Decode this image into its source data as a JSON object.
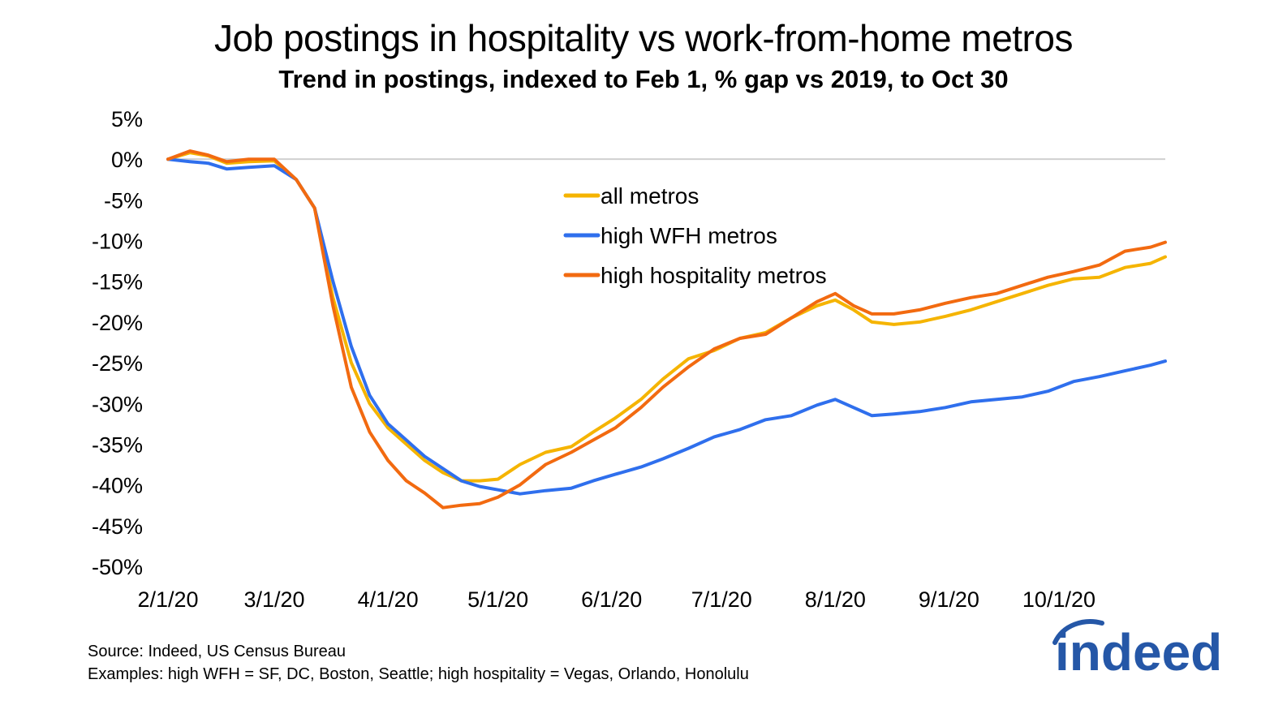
{
  "header": {
    "title": "Job postings in hospitality vs work-from-home metros",
    "subtitle": "Trend in postings, indexed to Feb 1, % gap vs 2019, to Oct 30"
  },
  "footer": {
    "source": "Source: Indeed, US Census Bureau",
    "examples": "Examples: high WFH = SF, DC, Boston, Seattle; high hospitality = Vegas, Orlando, Honolulu"
  },
  "logo": {
    "text": "indeed",
    "color": "#2557a7"
  },
  "chart_data": {
    "type": "line",
    "title": "Job postings in hospitality vs work-from-home metros",
    "subtitle": "Trend in postings, indexed to Feb 1, % gap vs 2019, to Oct 30",
    "xlabel": "",
    "ylabel": "",
    "ylim": [
      -50,
      5
    ],
    "yticks": [
      5,
      0,
      -5,
      -10,
      -15,
      -20,
      -25,
      -30,
      -35,
      -40,
      -45,
      -50
    ],
    "ytick_labels": [
      "5%",
      "0%",
      "-5%",
      "-10%",
      "-15%",
      "-20%",
      "-25%",
      "-30%",
      "-35%",
      "-40%",
      "-45%",
      "-50%"
    ],
    "x_start": "2020-02-01",
    "x_end": "2020-10-30",
    "xticks": [
      "2020-02-01",
      "2020-03-01",
      "2020-04-01",
      "2020-05-01",
      "2020-06-01",
      "2020-07-01",
      "2020-08-01",
      "2020-09-01",
      "2020-10-01"
    ],
    "xtick_labels": [
      "2/1/20",
      "3/1/20",
      "4/1/20",
      "5/1/20",
      "6/1/20",
      "7/1/20",
      "8/1/20",
      "9/1/20",
      "10/1/20"
    ],
    "zero_line": true,
    "grid": false,
    "legend_position": "center",
    "series": [
      {
        "name": "all metros",
        "color": "#f5b400",
        "x": [
          "2020-02-01",
          "2020-02-07",
          "2020-02-12",
          "2020-02-17",
          "2020-02-23",
          "2020-03-01",
          "2020-03-07",
          "2020-03-12",
          "2020-03-17",
          "2020-03-22",
          "2020-03-27",
          "2020-04-01",
          "2020-04-06",
          "2020-04-11",
          "2020-04-16",
          "2020-04-21",
          "2020-04-26",
          "2020-05-01",
          "2020-05-07",
          "2020-05-14",
          "2020-05-21",
          "2020-05-27",
          "2020-06-02",
          "2020-06-09",
          "2020-06-15",
          "2020-06-22",
          "2020-06-29",
          "2020-07-06",
          "2020-07-13",
          "2020-07-20",
          "2020-07-27",
          "2020-08-01",
          "2020-08-06",
          "2020-08-11",
          "2020-08-17",
          "2020-08-24",
          "2020-08-31",
          "2020-09-07",
          "2020-09-14",
          "2020-09-21",
          "2020-09-28",
          "2020-10-05",
          "2020-10-12",
          "2020-10-19",
          "2020-10-26",
          "2020-10-30"
        ],
        "y": [
          0,
          0.8,
          0.4,
          -0.5,
          -0.3,
          -0.2,
          -2.5,
          -6,
          -17,
          -25,
          -30,
          -33,
          -35,
          -37,
          -38.5,
          -39.5,
          -39.5,
          -39.3,
          -37.5,
          -36,
          -35.3,
          -33.5,
          -31.8,
          -29.5,
          -27,
          -24.5,
          -23.5,
          -22,
          -21.3,
          -19.5,
          -18,
          -17.3,
          -18.5,
          -20,
          -20.3,
          -20,
          -19.3,
          -18.5,
          -17.5,
          -16.5,
          -15.5,
          -14.7,
          -14.5,
          -13.3,
          -12.8,
          -12
        ]
      },
      {
        "name": "high WFH metros",
        "color": "#2f6fed",
        "x": [
          "2020-02-01",
          "2020-02-07",
          "2020-02-12",
          "2020-02-17",
          "2020-02-23",
          "2020-03-01",
          "2020-03-07",
          "2020-03-12",
          "2020-03-17",
          "2020-03-22",
          "2020-03-27",
          "2020-04-01",
          "2020-04-06",
          "2020-04-11",
          "2020-04-16",
          "2020-04-21",
          "2020-04-26",
          "2020-05-01",
          "2020-05-07",
          "2020-05-14",
          "2020-05-21",
          "2020-05-27",
          "2020-06-02",
          "2020-06-09",
          "2020-06-15",
          "2020-06-22",
          "2020-06-29",
          "2020-07-06",
          "2020-07-13",
          "2020-07-20",
          "2020-07-27",
          "2020-08-01",
          "2020-08-06",
          "2020-08-11",
          "2020-08-17",
          "2020-08-24",
          "2020-08-31",
          "2020-09-07",
          "2020-09-14",
          "2020-09-21",
          "2020-09-28",
          "2020-10-05",
          "2020-10-12",
          "2020-10-19",
          "2020-10-26",
          "2020-10-30"
        ],
        "y": [
          0,
          -0.3,
          -0.5,
          -1.2,
          -1,
          -0.8,
          -2.5,
          -6,
          -15,
          -23,
          -29,
          -32.5,
          -34.5,
          -36.5,
          -38,
          -39.5,
          -40.2,
          -40.6,
          -41.1,
          -40.7,
          -40.4,
          -39.5,
          -38.7,
          -37.8,
          -36.8,
          -35.5,
          -34.1,
          -33.2,
          -32,
          -31.5,
          -30.2,
          -29.5,
          -30.5,
          -31.5,
          -31.3,
          -31,
          -30.5,
          -29.8,
          -29.5,
          -29.2,
          -28.5,
          -27.3,
          -26.7,
          -26,
          -25.3,
          -24.8
        ]
      },
      {
        "name": "high hospitality metros",
        "color": "#f26a10",
        "x": [
          "2020-02-01",
          "2020-02-07",
          "2020-02-12",
          "2020-02-17",
          "2020-02-23",
          "2020-03-01",
          "2020-03-07",
          "2020-03-12",
          "2020-03-17",
          "2020-03-22",
          "2020-03-27",
          "2020-04-01",
          "2020-04-06",
          "2020-04-11",
          "2020-04-16",
          "2020-04-21",
          "2020-04-26",
          "2020-05-01",
          "2020-05-07",
          "2020-05-14",
          "2020-05-21",
          "2020-05-27",
          "2020-06-02",
          "2020-06-09",
          "2020-06-15",
          "2020-06-22",
          "2020-06-29",
          "2020-07-06",
          "2020-07-13",
          "2020-07-20",
          "2020-07-27",
          "2020-08-01",
          "2020-08-06",
          "2020-08-11",
          "2020-08-17",
          "2020-08-24",
          "2020-08-31",
          "2020-09-07",
          "2020-09-14",
          "2020-09-21",
          "2020-09-28",
          "2020-10-05",
          "2020-10-12",
          "2020-10-19",
          "2020-10-26",
          "2020-10-30"
        ],
        "y": [
          0,
          1,
          0.5,
          -0.3,
          0,
          0,
          -2.5,
          -6,
          -18,
          -28,
          -33.5,
          -37,
          -39.5,
          -41,
          -42.8,
          -42.5,
          -42.3,
          -41.5,
          -40,
          -37.5,
          -36,
          -34.5,
          -33,
          -30.5,
          -28,
          -25.5,
          -23.3,
          -22,
          -21.5,
          -19.5,
          -17.5,
          -16.5,
          -18,
          -19,
          -19,
          -18.5,
          -17.7,
          -17,
          -16.5,
          -15.5,
          -14.5,
          -13.8,
          -13,
          -11.3,
          -10.8,
          -10.2
        ]
      }
    ]
  }
}
